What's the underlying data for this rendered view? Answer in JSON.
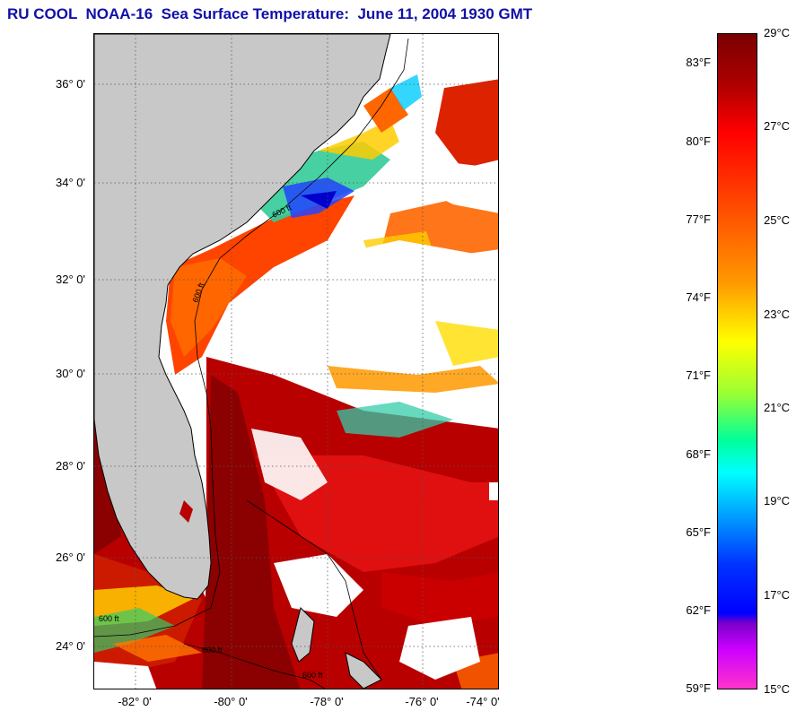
{
  "title": "RU COOL  NOAA-16  Sea Surface Temperature:  June 11, 2004 1930 GMT",
  "map": {
    "lat_labels": [
      "36° 0'",
      "34° 0'",
      "32° 0'",
      "30° 0'",
      "28° 0'",
      "26° 0'",
      "24° 0'"
    ],
    "lon_labels": [
      "-82° 0'",
      "-80° 0'",
      "-78° 0'",
      "-76° 0'",
      "-74° 0'"
    ],
    "contour_labels": [
      "600 ft",
      "600 ft",
      "600 ft",
      "600 ft",
      "600 ft"
    ],
    "colors": {
      "land": "#c8c8c8",
      "cloud": "#ffffff",
      "warm": "#cc0000",
      "hot": "#8b0000"
    }
  },
  "colorbar": {
    "fahrenheit": [
      "83°F",
      "80°F",
      "77°F",
      "74°F",
      "71°F",
      "68°F",
      "65°F",
      "62°F",
      "59°F"
    ],
    "celsius": [
      "29°C",
      "27°C",
      "25°C",
      "23°C",
      "21°C",
      "19°C",
      "17°C",
      "15°C"
    ]
  }
}
